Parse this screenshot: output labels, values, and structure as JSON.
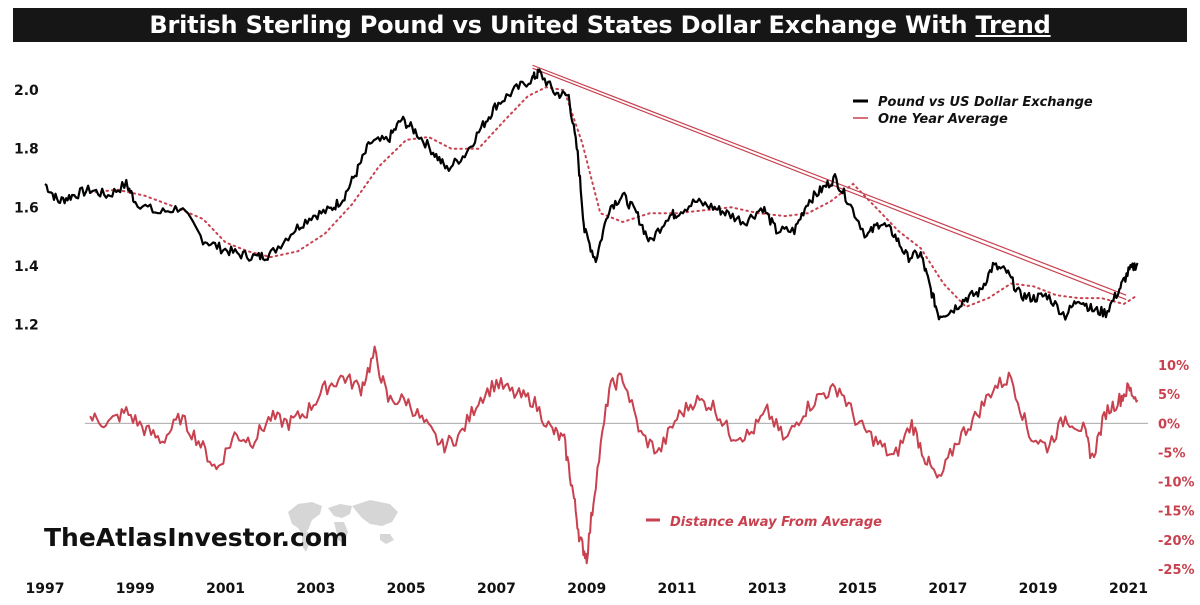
{
  "title": {
    "main": "British Sterling Pound vs United States Dollar Exchange With",
    "emphasis": "Trend"
  },
  "brand": {
    "text": "TheAtlasInvestor.com",
    "icon": "world-map-icon"
  },
  "colors": {
    "price": "#000000",
    "average": "#c8414f",
    "distance": "#c8414f",
    "trend": "#c8414f",
    "title_bg": "#161616"
  },
  "chart_data": [
    {
      "type": "line",
      "xlim": [
        1997,
        2021.3
      ],
      "ylim": [
        1.13,
        2.12
      ],
      "x_ticks": [
        "1997",
        "1999",
        "2001",
        "2003",
        "2005",
        "2007",
        "2009",
        "2011",
        "2013",
        "2015",
        "2017",
        "2019",
        "2021"
      ],
      "y_ticks": [
        "2.0",
        "1.8",
        "1.6",
        "1.4",
        "1.2"
      ],
      "legend": {
        "placement": "top-right",
        "entries": [
          "Pound vs US Dollar Exchange",
          "One Year Average"
        ]
      },
      "series": [
        {
          "name": "Pound vs US Dollar Exchange",
          "x": [
            1997.0,
            1997.3,
            1997.6,
            1998.0,
            1998.4,
            1998.8,
            1999.0,
            1999.5,
            2000.0,
            2000.5,
            2000.9,
            2001.3,
            2001.7,
            2002.0,
            2002.5,
            2002.9,
            2003.3,
            2003.6,
            2003.9,
            2004.2,
            2004.6,
            2004.9,
            2005.2,
            2005.6,
            2005.9,
            2006.3,
            2006.7,
            2007.0,
            2007.4,
            2007.8,
            2007.95,
            2008.3,
            2008.6,
            2008.8,
            2008.95,
            2009.2,
            2009.5,
            2009.8,
            2010.1,
            2010.4,
            2010.8,
            2011.0,
            2011.4,
            2011.8,
            2012.1,
            2012.5,
            2012.9,
            2013.2,
            2013.6,
            2013.9,
            2014.2,
            2014.5,
            2014.8,
            2015.2,
            2015.5,
            2015.8,
            2016.1,
            2016.4,
            2016.6,
            2016.8,
            2017.1,
            2017.4,
            2017.7,
            2018.0,
            2018.3,
            2018.6,
            2018.9,
            2019.2,
            2019.6,
            2019.9,
            2020.2,
            2020.5,
            2020.8,
            2021.0,
            2021.2
          ],
          "values": [
            1.68,
            1.62,
            1.64,
            1.66,
            1.64,
            1.68,
            1.62,
            1.58,
            1.6,
            1.49,
            1.46,
            1.44,
            1.43,
            1.44,
            1.52,
            1.57,
            1.59,
            1.63,
            1.72,
            1.82,
            1.83,
            1.9,
            1.86,
            1.79,
            1.73,
            1.78,
            1.88,
            1.95,
            2.0,
            2.04,
            2.06,
            1.99,
            1.98,
            1.78,
            1.52,
            1.42,
            1.6,
            1.64,
            1.58,
            1.48,
            1.57,
            1.58,
            1.62,
            1.6,
            1.58,
            1.55,
            1.6,
            1.52,
            1.52,
            1.62,
            1.66,
            1.7,
            1.62,
            1.5,
            1.55,
            1.51,
            1.43,
            1.44,
            1.33,
            1.23,
            1.25,
            1.29,
            1.31,
            1.4,
            1.38,
            1.3,
            1.29,
            1.3,
            1.23,
            1.29,
            1.25,
            1.24,
            1.32,
            1.38,
            1.41
          ]
        },
        {
          "name": "One Year Average",
          "x": [
            1998.0,
            1998.6,
            1999.2,
            1999.9,
            2000.5,
            2001.0,
            2001.5,
            2002.0,
            2002.6,
            2003.2,
            2003.8,
            2004.4,
            2005.0,
            2005.5,
            2006.0,
            2006.6,
            2007.2,
            2007.7,
            2008.1,
            2008.5,
            2008.9,
            2009.3,
            2009.8,
            2010.4,
            2011.0,
            2011.6,
            2012.2,
            2012.8,
            2013.4,
            2013.9,
            2014.4,
            2014.9,
            2015.4,
            2015.9,
            2016.4,
            2016.9,
            2017.4,
            2017.9,
            2018.4,
            2018.9,
            2019.4,
            2019.9,
            2020.4,
            2020.9,
            2021.2
          ],
          "values": [
            1.65,
            1.66,
            1.64,
            1.6,
            1.56,
            1.48,
            1.45,
            1.43,
            1.45,
            1.51,
            1.61,
            1.74,
            1.83,
            1.84,
            1.8,
            1.8,
            1.9,
            1.98,
            2.01,
            2.0,
            1.82,
            1.58,
            1.55,
            1.58,
            1.58,
            1.59,
            1.6,
            1.58,
            1.57,
            1.58,
            1.62,
            1.68,
            1.6,
            1.52,
            1.46,
            1.34,
            1.26,
            1.29,
            1.34,
            1.33,
            1.3,
            1.29,
            1.29,
            1.27,
            1.3
          ]
        }
      ],
      "trend_lines": [
        {
          "x": [
            2007.8,
            2020.95
          ],
          "values": [
            2.085,
            1.3
          ]
        },
        {
          "x": [
            2007.8,
            2020.95
          ],
          "values": [
            2.075,
            1.285
          ]
        }
      ]
    },
    {
      "type": "line",
      "xlim": [
        1997,
        2021.3
      ],
      "ylim": [
        -25,
        10
      ],
      "y_ticks": [
        "10%",
        "5%",
        "0%",
        "-5%",
        "-10%",
        "-15%",
        "-20%",
        "-25%"
      ],
      "y_tick_values": [
        10,
        5,
        0,
        -5,
        -10,
        -15,
        -20,
        -25
      ],
      "legend": {
        "placement": "bottom-center",
        "entries": [
          "Distance Away From Average"
        ]
      },
      "series": [
        {
          "name": "Distance Away From Average",
          "x": [
            1998.0,
            1998.4,
            1998.8,
            1999.2,
            1999.6,
            2000.0,
            2000.4,
            2000.8,
            2001.2,
            2001.6,
            2002.0,
            2002.4,
            2002.8,
            2003.2,
            2003.6,
            2004.0,
            2004.3,
            2004.6,
            2005.0,
            2005.4,
            2005.8,
            2006.2,
            2006.6,
            2007.0,
            2007.4,
            2007.8,
            2008.2,
            2008.5,
            2008.7,
            2008.85,
            2009.0,
            2009.2,
            2009.5,
            2009.8,
            2010.2,
            2010.6,
            2011.0,
            2011.4,
            2011.8,
            2012.2,
            2012.6,
            2013.0,
            2013.4,
            2013.8,
            2014.2,
            2014.6,
            2015.0,
            2015.4,
            2015.8,
            2016.2,
            2016.5,
            2016.8,
            2017.2,
            2017.6,
            2018.0,
            2018.4,
            2018.8,
            2019.2,
            2019.6,
            2020.0,
            2020.2,
            2020.5,
            2020.8,
            2021.0,
            2021.2
          ],
          "values": [
            1,
            0,
            2,
            -1,
            -3,
            1,
            -3,
            -8,
            -2,
            -3,
            1,
            0,
            2,
            6,
            8,
            6,
            12,
            4,
            4,
            0,
            -4,
            -2,
            4,
            7,
            5,
            4,
            -1,
            -3,
            -12,
            -20,
            -23,
            -10,
            6,
            8,
            -2,
            -5,
            1,
            4,
            3,
            -2,
            -2,
            2,
            -3,
            2,
            5,
            6,
            0,
            -3,
            -6,
            0,
            -6,
            -10,
            -3,
            1,
            6,
            8,
            -2,
            -4,
            1,
            -1,
            -6,
            2,
            4,
            6,
            4
          ]
        }
      ]
    }
  ]
}
